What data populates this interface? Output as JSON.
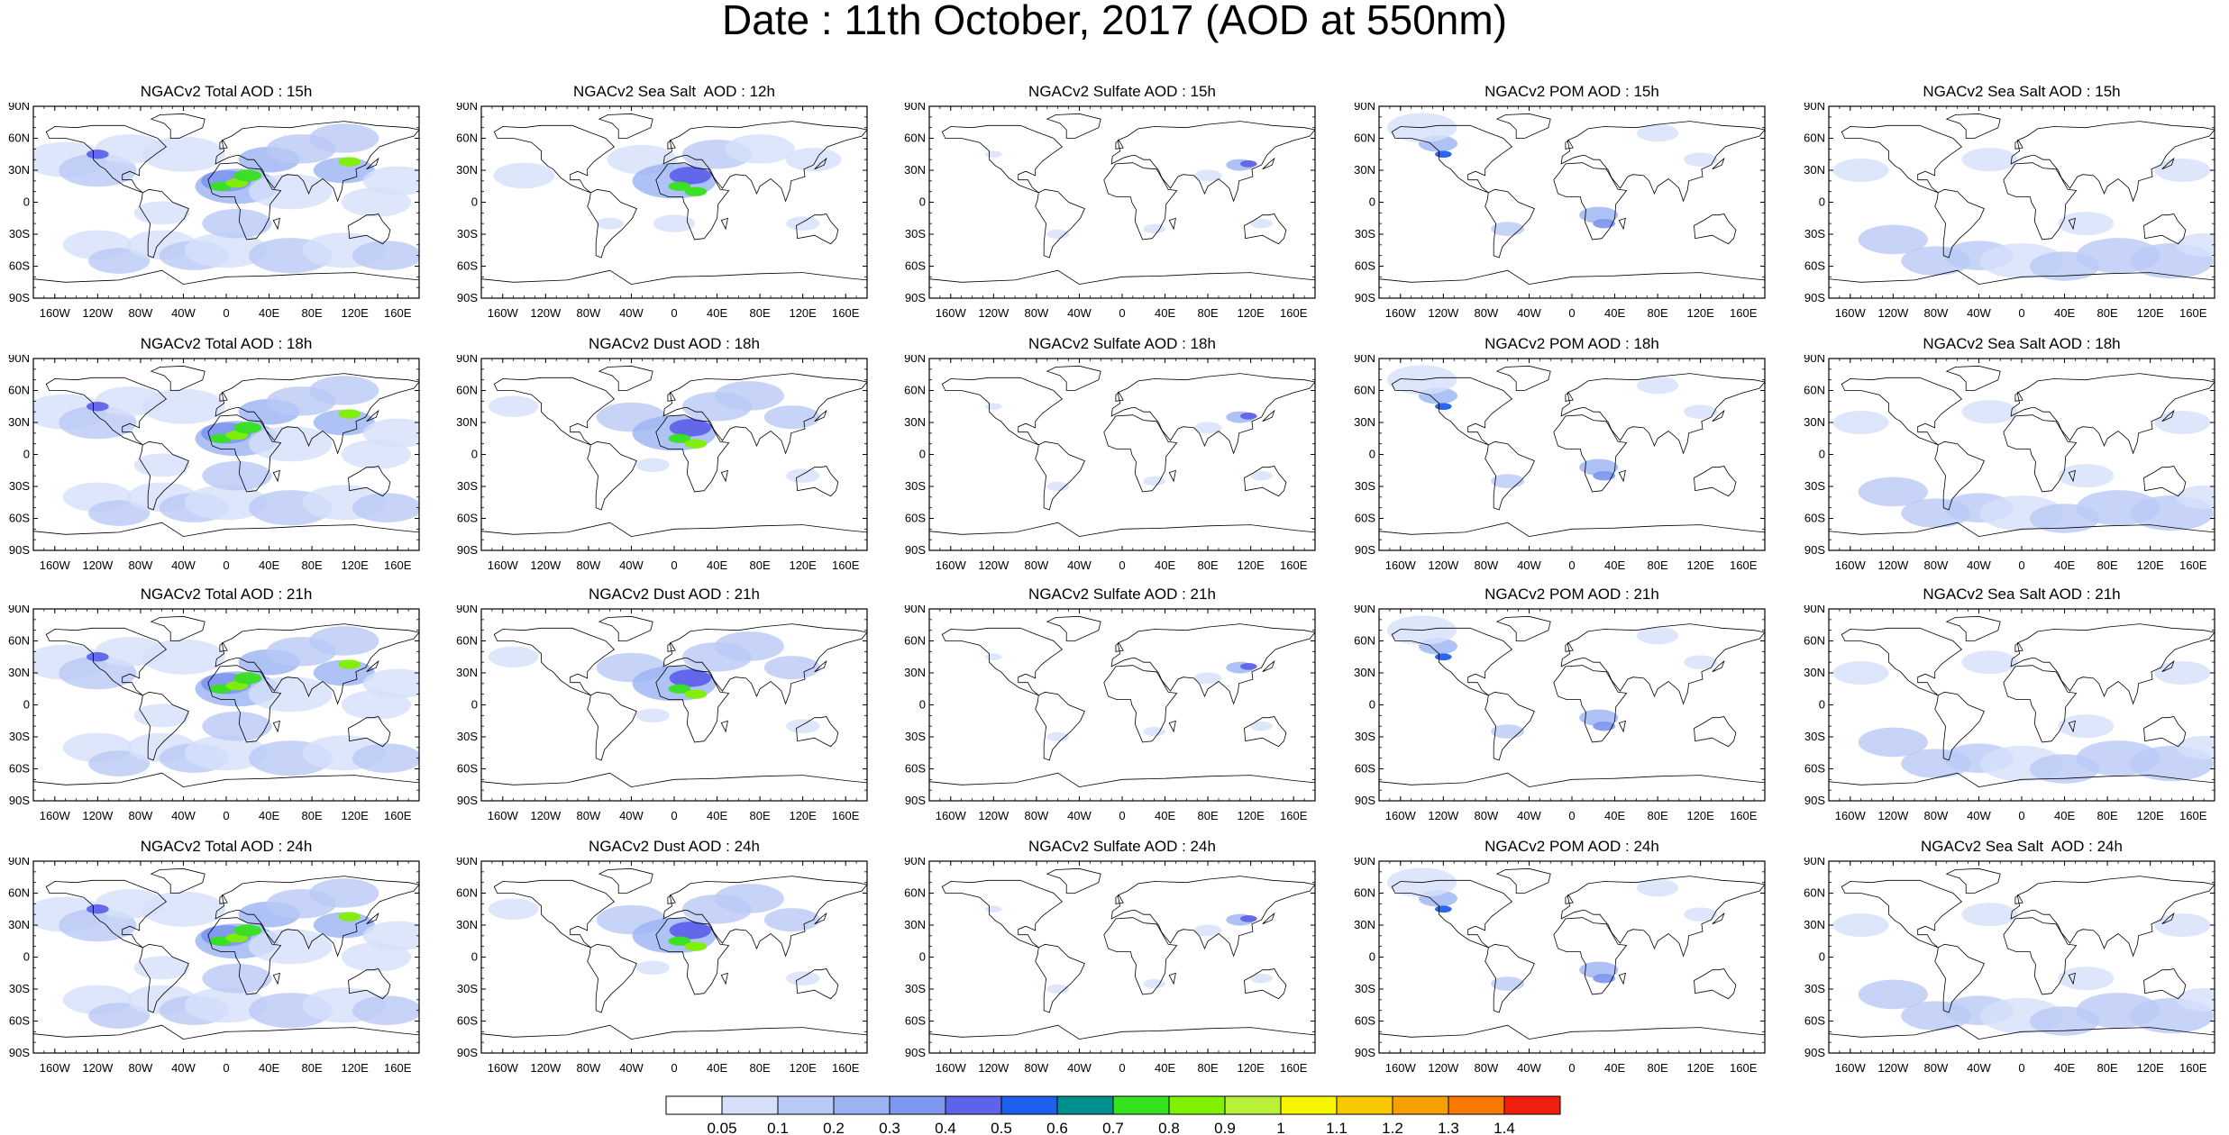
{
  "title": "Date : 11th October, 2017 (AOD at 550nm)",
  "lat_labels": [
    "90N",
    "60N",
    "30N",
    "0",
    "30S",
    "60S",
    "90S"
  ],
  "lon_labels": [
    "160W",
    "120W",
    "80W",
    "40W",
    "0",
    "40E",
    "80E",
    "120E",
    "160E"
  ],
  "rows": [
    [
      "NGACv2 Total AOD : 15h",
      "NGACv2 Sea Salt  AOD : 12h",
      "NGACv2 Sulfate AOD : 15h",
      "NGACv2 POM AOD : 15h",
      "NGACv2 Sea Salt AOD : 15h"
    ],
    [
      "NGACv2 Total AOD : 18h",
      "NGACv2 Dust AOD : 18h",
      "NGACv2 Sulfate AOD : 18h",
      "NGACv2 POM AOD : 18h",
      "NGACv2 Sea Salt AOD : 18h"
    ],
    [
      "NGACv2 Total AOD : 21h",
      "NGACv2 Dust AOD : 21h",
      "NGACv2 Sulfate AOD : 21h",
      "NGACv2 POM AOD : 21h",
      "NGACv2 Sea Salt AOD : 21h"
    ],
    [
      "NGACv2 Total AOD : 24h",
      "NGACv2 Dust AOD : 24h",
      "NGACv2 Sulfate AOD : 24h",
      "NGACv2 POM AOD : 24h",
      "NGACv2 Sea Salt  AOD : 24h"
    ]
  ],
  "colorbar": {
    "labels": [
      "0.05",
      "0.1",
      "0.2",
      "0.3",
      "0.4",
      "0.5",
      "0.6",
      "0.7",
      "0.8",
      "0.9",
      "1",
      "1.1",
      "1.2",
      "1.3",
      "1.4"
    ],
    "colors": [
      "#ffffff",
      "#d6e0fa",
      "#b9c9f6",
      "#9bb3f2",
      "#7f98ef",
      "#5f63ea",
      "#1f5ff0",
      "#008f8f",
      "#36e21e",
      "#7ef000",
      "#b8f03a",
      "#f6f600",
      "#f8c800",
      "#f8a000",
      "#f87800",
      "#f02010"
    ]
  }
}
